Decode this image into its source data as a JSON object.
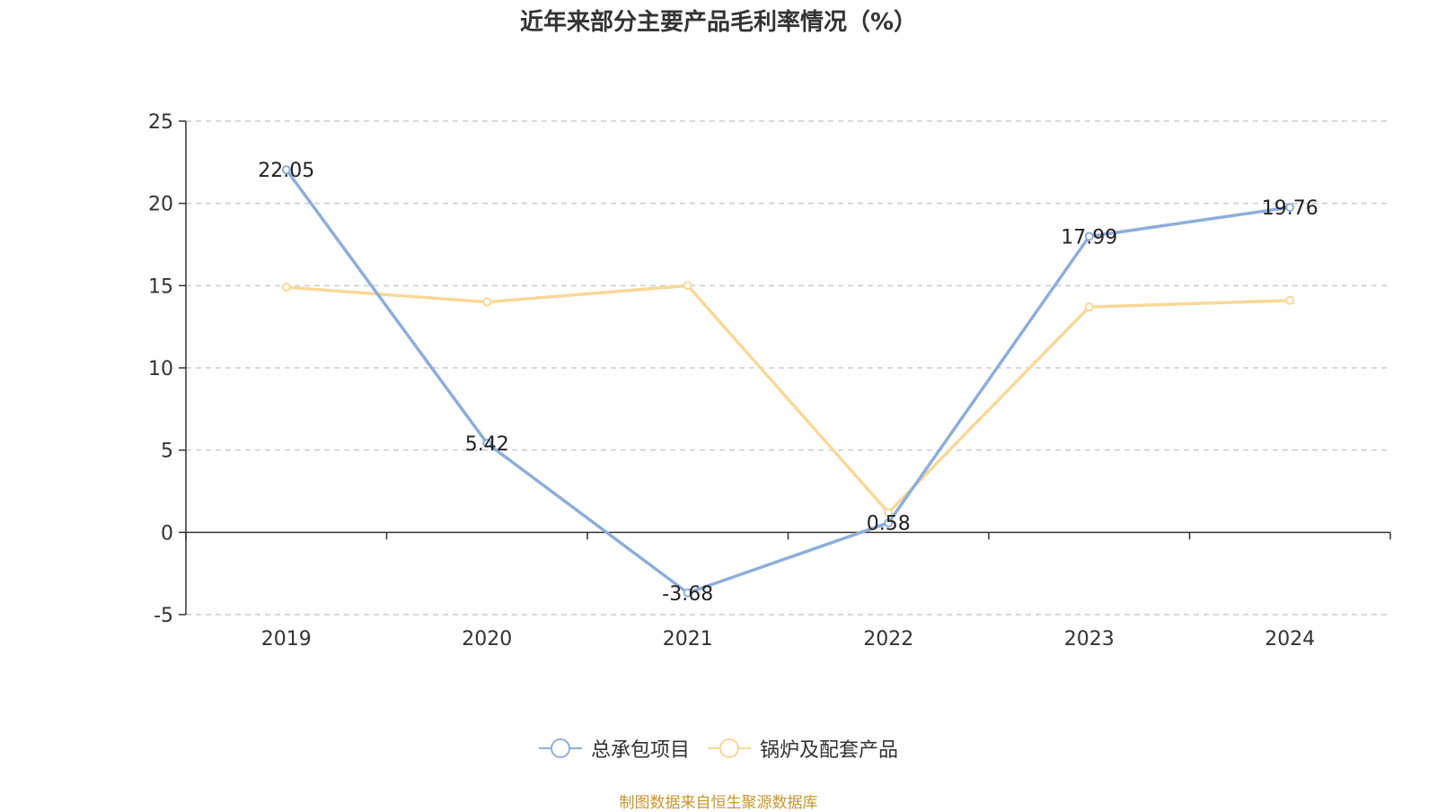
{
  "chart_data": {
    "type": "line",
    "title": "近年来部分主要产品毛利率情况（%）",
    "categories": [
      "2019",
      "2020",
      "2021",
      "2022",
      "2023",
      "2024"
    ],
    "ylim": [
      -5,
      25
    ],
    "yticks": [
      -5,
      0,
      5,
      10,
      15,
      20,
      25
    ],
    "grid": true,
    "legend_position": "bottom",
    "series": [
      {
        "name": "总承包项目",
        "color": "#8eaed8",
        "values": [
          22.05,
          5.42,
          -3.68,
          0.58,
          17.99,
          19.76
        ],
        "labels": [
          "22.05",
          "5.42",
          "-3.68",
          "0.58",
          "17.99",
          "19.76"
        ]
      },
      {
        "name": "锅炉及配套产品",
        "color": "#f9d898",
        "values": [
          14.9,
          14.0,
          15.0,
          1.2,
          13.7,
          14.1
        ]
      }
    ]
  },
  "source_text": "制图数据来自恒生聚源数据库"
}
